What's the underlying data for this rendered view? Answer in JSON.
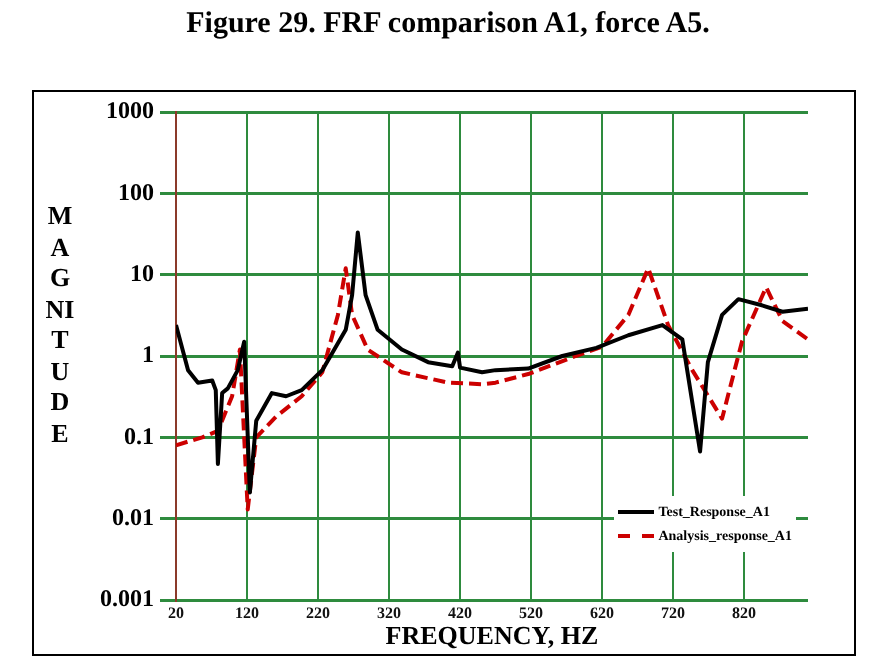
{
  "chart_data": {
    "type": "line",
    "title": "Figure 29. FRF comparison A1, force A5.",
    "xlabel": "FREQUENCY, HZ",
    "ylabel": "MAGNITUDE",
    "xlim": [
      20,
      910
    ],
    "xticks": [
      20,
      120,
      220,
      320,
      420,
      520,
      620,
      720,
      820
    ],
    "ylim": [
      0.001,
      1000
    ],
    "yticks": [
      0.001,
      0.01,
      0.1,
      1,
      10,
      100,
      1000
    ],
    "log": "y",
    "grid": true,
    "legend": "bottom right",
    "marker": "none",
    "series": [
      {
        "name": "Test_Response_A1",
        "color": "#000000",
        "line_style": "solid",
        "x": [
          20,
          37,
          51,
          71,
          76,
          79,
          85,
          93,
          107,
          116,
          124,
          133,
          155,
          175,
          197,
          226,
          259,
          268,
          276,
          287,
          304,
          338,
          375,
          409,
          417,
          420,
          451,
          470,
          516,
          564,
          612,
          657,
          705,
          733,
          758,
          769,
          789,
          812,
          845,
          874,
          910
        ],
        "values": [
          2.4,
          0.67,
          0.47,
          0.5,
          0.38,
          0.047,
          0.35,
          0.4,
          0.67,
          1.5,
          0.021,
          0.16,
          0.35,
          0.32,
          0.38,
          0.67,
          2.1,
          5.6,
          33,
          5.6,
          2.1,
          1.2,
          0.84,
          0.75,
          1.1,
          0.72,
          0.63,
          0.67,
          0.7,
          1.0,
          1.26,
          1.8,
          2.4,
          1.6,
          0.067,
          0.84,
          3.2,
          5.0,
          4.2,
          3.5,
          3.8
        ]
      },
      {
        "name": "Analysis_response_A1",
        "color": "#cc0000",
        "line_style": "dashed",
        "x": [
          20,
          57,
          79,
          99,
          110,
          121,
          133,
          161,
          197,
          226,
          248,
          259,
          268,
          290,
          338,
          403,
          451,
          470,
          516,
          583,
          620,
          657,
          685,
          713,
          747,
          789,
          817,
          851,
          874,
          910
        ],
        "values": [
          0.08,
          0.1,
          0.12,
          0.32,
          1.2,
          0.013,
          0.1,
          0.18,
          0.32,
          0.63,
          3.2,
          12,
          3.2,
          1.2,
          0.63,
          0.47,
          0.45,
          0.47,
          0.6,
          1.0,
          1.3,
          3.2,
          12,
          2.4,
          0.67,
          0.17,
          1.5,
          7,
          2.7,
          1.6
        ]
      }
    ]
  }
}
